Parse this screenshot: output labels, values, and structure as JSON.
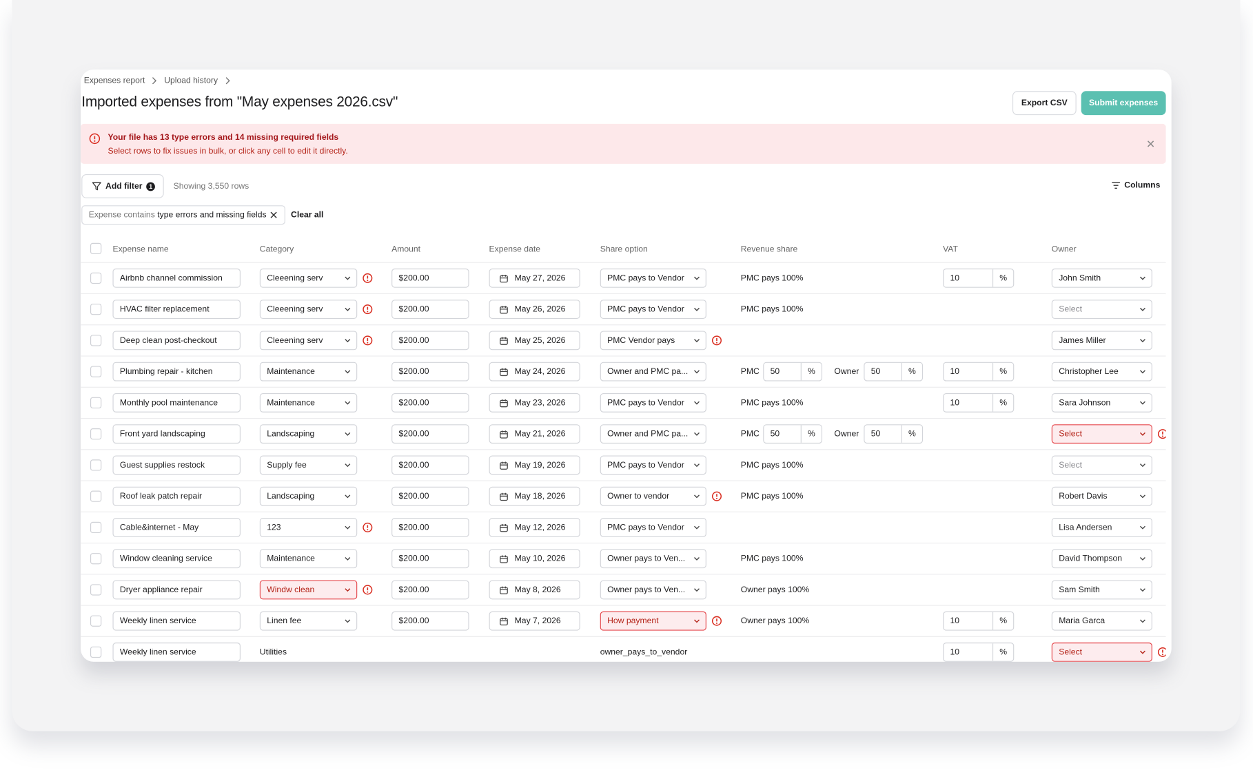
{
  "breadcrumbs": [
    "Expenses report",
    "Upload history"
  ],
  "title": "Imported expenses from \"May expenses 2026.csv\"",
  "actions": {
    "export": "Export CSV",
    "submit": "Submit expenses"
  },
  "alert": {
    "title": "Your file has 13 type errors and 14 missing required fields",
    "message": "Select rows to fix issues in bulk, or click any cell to edit it directly."
  },
  "toolbar": {
    "add_filter": "Add filter",
    "filter_count": "1",
    "showing": "Showing 3,550 rows",
    "columns": "Columns"
  },
  "chip": {
    "prefix": "Expense contains",
    "value": "type errors and missing fields",
    "clear": "Clear all"
  },
  "table": {
    "columns": [
      "Expense name",
      "Category",
      "Amount",
      "Expense date",
      "Share option",
      "Revenue share",
      "VAT",
      "Owner"
    ],
    "percent": "%",
    "pmc_label": "PMC",
    "owner_label": "Owner",
    "rows": [
      {
        "name": "Airbnb channel commission",
        "category": "Cleeening serv",
        "category_state": "warn",
        "amount": "$200.00",
        "date": "May 27, 2026",
        "share": "PMC pays to Vendor",
        "share_state": "ok",
        "revenue": "PMC pays 100%",
        "vat": 10,
        "owner": "John Smith",
        "owner_state": "ok"
      },
      {
        "name": "HVAC filter replacement",
        "category": "Cleeening serv",
        "category_state": "warn",
        "amount": "$200.00",
        "date": "May 26, 2026",
        "share": "PMC pays to Vendor",
        "share_state": "ok",
        "revenue": "PMC pays 100%",
        "vat": null,
        "owner": "Select",
        "owner_state": "placeholder"
      },
      {
        "name": "Deep clean post-checkout",
        "category": "Cleeening serv",
        "category_state": "warn",
        "amount": "$200.00",
        "date": "May 25, 2026",
        "share": "PMC Vendor pays",
        "share_state": "warn",
        "revenue": null,
        "vat": null,
        "owner": "James Miller",
        "owner_state": "ok"
      },
      {
        "name": "Plumbing repair - kitchen",
        "category": "Maintenance",
        "category_state": "ok",
        "amount": "$200.00",
        "date": "May 24, 2026",
        "share": "Owner and PMC pa...",
        "share_state": "ok",
        "revenue": null,
        "split": [
          50,
          50
        ],
        "vat": 10,
        "owner": "Christopher Lee",
        "owner_state": "ok"
      },
      {
        "name": "Monthly pool maintenance",
        "category": "Maintenance",
        "category_state": "ok",
        "amount": "$200.00",
        "date": "May 23, 2026",
        "share": "PMC pays to Vendor",
        "share_state": "ok",
        "revenue": "PMC pays 100%",
        "vat": 10,
        "owner": "Sara Johnson",
        "owner_state": "ok"
      },
      {
        "name": "Front yard landscaping",
        "category": "Landscaping",
        "category_state": "ok",
        "amount": "$200.00",
        "date": "May 21, 2026",
        "share": "Owner and PMC pa...",
        "share_state": "ok",
        "revenue": null,
        "split": [
          50,
          50
        ],
        "vat": null,
        "owner": "Select",
        "owner_state": "invalid"
      },
      {
        "name": "Guest supplies restock",
        "category": "Supply fee",
        "category_state": "ok",
        "amount": "$200.00",
        "date": "May 19, 2026",
        "share": "PMC pays to Vendor",
        "share_state": "ok",
        "revenue": "PMC pays 100%",
        "vat": null,
        "owner": "Select",
        "owner_state": "placeholder"
      },
      {
        "name": "Roof leak patch repair",
        "category": "Landscaping",
        "category_state": "ok",
        "amount": "$200.00",
        "date": "May 18, 2026",
        "share": "Owner to vendor",
        "share_state": "warn",
        "revenue": "PMC pays 100%",
        "vat": null,
        "owner": "Robert Davis",
        "owner_state": "ok"
      },
      {
        "name": "Cable&internet - May",
        "category": "123",
        "category_state": "warn",
        "amount": "$200.00",
        "date": "May 12, 2026",
        "share": "PMC pays to Vendor",
        "share_state": "ok",
        "revenue": null,
        "vat": null,
        "owner": "Lisa Andersen",
        "owner_state": "ok"
      },
      {
        "name": "Window cleaning service",
        "category": "Maintenance",
        "category_state": "ok",
        "amount": "$200.00",
        "date": "May 10, 2026",
        "share": "Owner pays to Ven...",
        "share_state": "ok",
        "revenue": "PMC pays 100%",
        "vat": null,
        "owner": "David Thompson",
        "owner_state": "ok"
      },
      {
        "name": "Dryer appliance repair",
        "category": "Windw clean",
        "category_state": "invalid",
        "amount": "$200.00",
        "date": "May 8, 2026",
        "share": "Owner pays to Ven...",
        "share_state": "ok",
        "revenue": "Owner pays 100%",
        "vat": null,
        "owner": "Sam Smith",
        "owner_state": "ok"
      },
      {
        "name": "Weekly linen service",
        "category": "Linen fee",
        "category_state": "ok",
        "amount": "$200.00",
        "date": "May 7, 2026",
        "share": "How payment",
        "share_state": "invalid",
        "revenue": "Owner pays 100%",
        "vat": 10,
        "owner": "Maria Garca",
        "owner_state": "ok"
      },
      {
        "name": "Weekly linen service",
        "category": "Utilities",
        "category_state": "plain",
        "amount": null,
        "date": null,
        "share": "owner_pays_to_vendor",
        "share_state": "plain",
        "revenue": null,
        "vat": 10,
        "owner": "Select",
        "owner_state": "invalid"
      }
    ]
  }
}
